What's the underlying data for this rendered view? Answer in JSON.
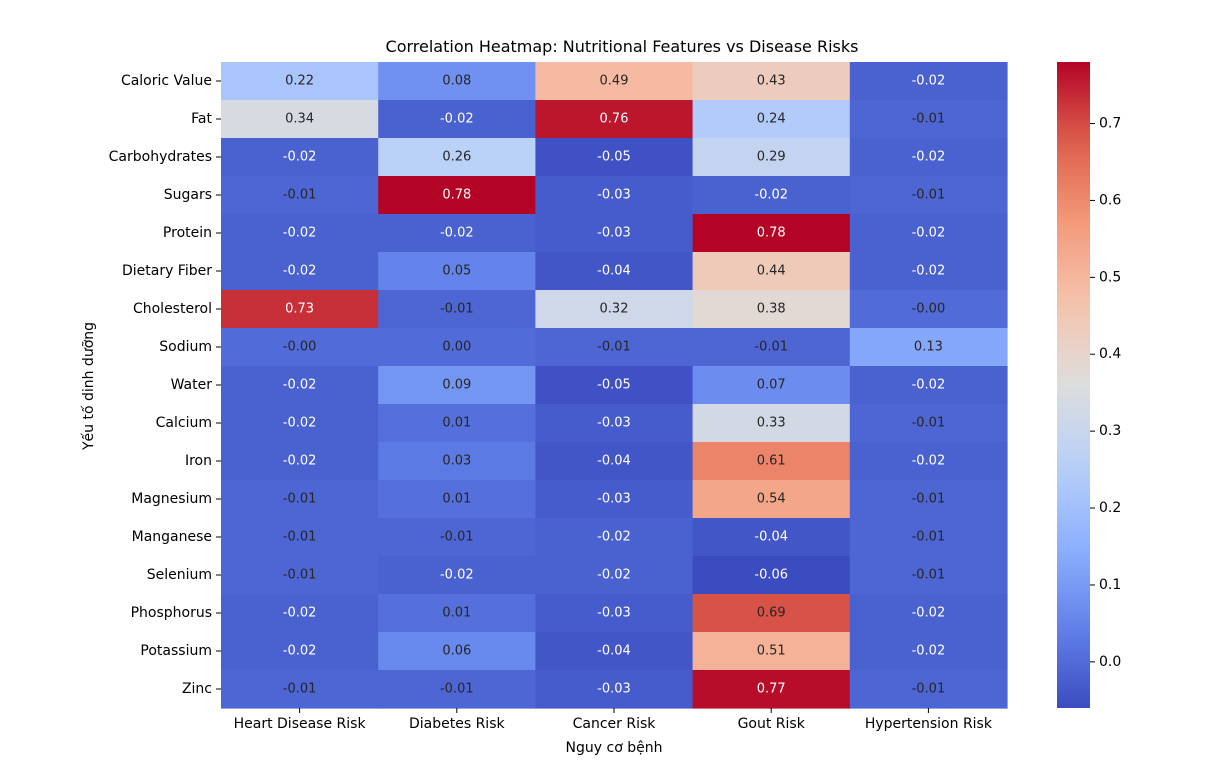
{
  "chart_data": {
    "type": "heatmap",
    "title": "Correlation Heatmap: Nutritional Features vs Disease Risks",
    "xlabel": "Nguy cơ bệnh",
    "ylabel": "Yếu tố dinh dưỡng",
    "columns": [
      "Heart Disease Risk",
      "Diabetes Risk",
      "Cancer Risk",
      "Gout Risk",
      "Hypertension Risk"
    ],
    "rows": [
      "Caloric Value",
      "Fat",
      "Carbohydrates",
      "Sugars",
      "Protein",
      "Dietary Fiber",
      "Cholesterol",
      "Sodium",
      "Water",
      "Calcium",
      "Iron",
      "Magnesium",
      "Manganese",
      "Selenium",
      "Phosphorus",
      "Potassium",
      "Zinc"
    ],
    "values": [
      [
        0.22,
        0.08,
        0.49,
        0.43,
        -0.02
      ],
      [
        0.34,
        -0.02,
        0.76,
        0.24,
        -0.01
      ],
      [
        -0.02,
        0.26,
        -0.05,
        0.29,
        -0.02
      ],
      [
        -0.01,
        0.78,
        -0.03,
        -0.02,
        -0.01
      ],
      [
        -0.02,
        -0.02,
        -0.03,
        0.78,
        -0.02
      ],
      [
        -0.02,
        0.05,
        -0.04,
        0.44,
        -0.02
      ],
      [
        0.73,
        -0.01,
        0.32,
        0.38,
        -0.0
      ],
      [
        -0.0,
        0.0,
        -0.01,
        -0.01,
        0.13
      ],
      [
        -0.02,
        0.09,
        -0.05,
        0.07,
        -0.02
      ],
      [
        -0.02,
        0.01,
        -0.03,
        0.33,
        -0.01
      ],
      [
        -0.02,
        0.03,
        -0.04,
        0.61,
        -0.02
      ],
      [
        -0.01,
        0.01,
        -0.03,
        0.54,
        -0.01
      ],
      [
        -0.01,
        -0.01,
        -0.02,
        -0.04,
        -0.01
      ],
      [
        -0.01,
        -0.02,
        -0.02,
        -0.06,
        -0.01
      ],
      [
        -0.02,
        0.01,
        -0.03,
        0.69,
        -0.02
      ],
      [
        -0.02,
        0.06,
        -0.04,
        0.51,
        -0.02
      ],
      [
        -0.01,
        -0.01,
        -0.03,
        0.77,
        -0.01
      ]
    ],
    "value_labels": [
      [
        "0.22",
        "0.08",
        "0.49",
        "0.43",
        "-0.02"
      ],
      [
        "0.34",
        "-0.02",
        "0.76",
        "0.24",
        "-0.01"
      ],
      [
        "-0.02",
        "0.26",
        "-0.05",
        "0.29",
        "-0.02"
      ],
      [
        "-0.01",
        "0.78",
        "-0.03",
        "-0.02",
        "-0.01"
      ],
      [
        "-0.02",
        "-0.02",
        "-0.03",
        "0.78",
        "-0.02"
      ],
      [
        "-0.02",
        "0.05",
        "-0.04",
        "0.44",
        "-0.02"
      ],
      [
        "0.73",
        "-0.01",
        "0.32",
        "0.38",
        "-0.00"
      ],
      [
        "-0.00",
        "0.00",
        "-0.01",
        "-0.01",
        "0.13"
      ],
      [
        "-0.02",
        "0.09",
        "-0.05",
        "0.07",
        "-0.02"
      ],
      [
        "-0.02",
        "0.01",
        "-0.03",
        "0.33",
        "-0.01"
      ],
      [
        "-0.02",
        "0.03",
        "-0.04",
        "0.61",
        "-0.02"
      ],
      [
        "-0.01",
        "0.01",
        "-0.03",
        "0.54",
        "-0.01"
      ],
      [
        "-0.01",
        "-0.01",
        "-0.02",
        "-0.04",
        "-0.01"
      ],
      [
        "-0.01",
        "-0.02",
        "-0.02",
        "-0.06",
        "-0.01"
      ],
      [
        "-0.02",
        "0.01",
        "-0.03",
        "0.69",
        "-0.02"
      ],
      [
        "-0.02",
        "0.06",
        "-0.04",
        "0.51",
        "-0.02"
      ],
      [
        "-0.01",
        "-0.01",
        "-0.03",
        "0.77",
        "-0.01"
      ]
    ],
    "colormap": "coolwarm",
    "vmin": -0.06,
    "vmax": 0.78,
    "colorbar_ticks": [
      0.0,
      0.1,
      0.2,
      0.3,
      0.4,
      0.5,
      0.6,
      0.7
    ],
    "colorbar_tick_labels": [
      "0.0",
      "0.1",
      "0.2",
      "0.3",
      "0.4",
      "0.5",
      "0.6",
      "0.7"
    ]
  }
}
